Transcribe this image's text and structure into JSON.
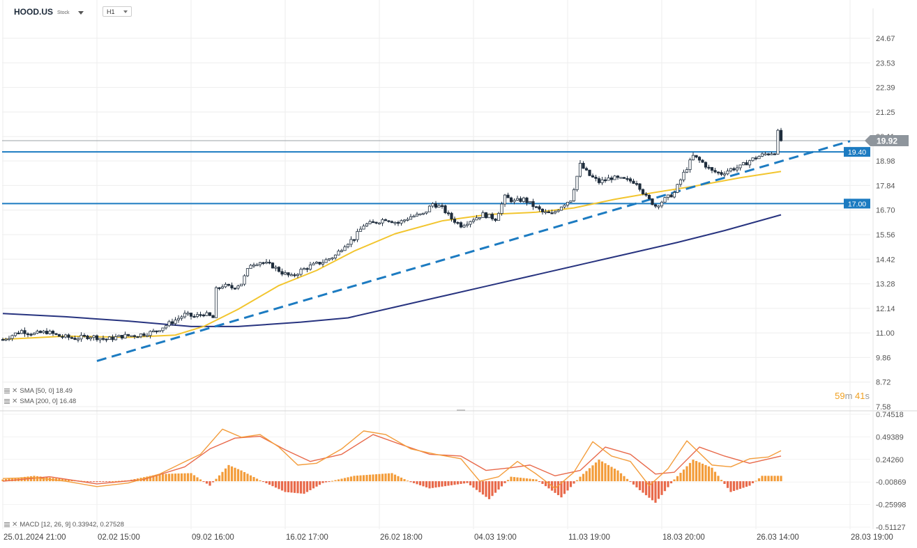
{
  "header": {
    "symbol": "HOOD.US",
    "type": "Stock",
    "timeframe": "H1"
  },
  "indicators": {
    "sma50": "SMA [50, 0] 18.49",
    "sma200": "SMA [200, 0] 16.48",
    "macd": "MACD [12, 26, 9] 0.33942,  0.27528"
  },
  "timer": {
    "min": "59",
    "min_unit": "m",
    "sec": "41",
    "sec_unit": "s"
  },
  "colors": {
    "candle": "#1f2d3d",
    "sma50": "#f2c52e",
    "sma200": "#27337f",
    "level": "#1c7bc1",
    "trend": "#1c7bc1",
    "macd_pos": "#f39c3a",
    "macd_neg": "#e8694a",
    "macd_line": "#f39c3a",
    "signal_line": "#e8694a",
    "price_badge": "#8e959c"
  },
  "chart_data": {
    "type": "candlestick",
    "price_axis": {
      "ticks": [
        24.67,
        23.53,
        22.39,
        21.25,
        20.11,
        18.98,
        17.84,
        16.7,
        15.56,
        14.42,
        13.28,
        12.14,
        11.0,
        9.86,
        8.72,
        7.58
      ]
    },
    "time_axis": {
      "labels": [
        "25.01.2024  21:00",
        "02.02  15:00",
        "09.02  16:00",
        "16.02  17:00",
        "26.02  18:00",
        "04.03  19:00",
        "11.03  19:00",
        "18.03  20:00",
        "26.03  14:00",
        "28.03  19:00"
      ]
    },
    "current_price": 19.92,
    "horizontal_levels": [
      {
        "label": "19.40",
        "value": 19.4
      },
      {
        "label": "17.00",
        "value": 17.0
      }
    ],
    "trendline": {
      "start": {
        "label": "02.02  15:00",
        "price": 9.7
      },
      "end": {
        "label": "28.03  19:00",
        "price": 19.9
      }
    },
    "price_path": [
      {
        "t": 0,
        "p": 10.7
      },
      {
        "t": 3,
        "p": 10.9
      },
      {
        "t": 6,
        "p": 11.1
      },
      {
        "t": 10,
        "p": 10.95
      },
      {
        "t": 14,
        "p": 11.05
      },
      {
        "t": 18,
        "p": 10.85
      },
      {
        "t": 23,
        "p": 10.75
      },
      {
        "t": 28,
        "p": 10.85
      },
      {
        "t": 33,
        "p": 10.7
      },
      {
        "t": 38,
        "p": 10.85
      },
      {
        "t": 43,
        "p": 10.9
      },
      {
        "t": 48,
        "p": 11.05
      },
      {
        "t": 52,
        "p": 11.35
      },
      {
        "t": 55,
        "p": 11.6
      },
      {
        "t": 58,
        "p": 11.85
      },
      {
        "t": 61,
        "p": 11.75
      },
      {
        "t": 64,
        "p": 11.9
      },
      {
        "t": 67,
        "p": 11.7
      },
      {
        "t": 68,
        "p": 13.0
      },
      {
        "t": 70,
        "p": 13.2
      },
      {
        "t": 73,
        "p": 13.1
      },
      {
        "t": 76,
        "p": 13.3
      },
      {
        "t": 79,
        "p": 14.2
      },
      {
        "t": 82,
        "p": 14.3
      },
      {
        "t": 86,
        "p": 14.1
      },
      {
        "t": 89,
        "p": 13.8
      },
      {
        "t": 92,
        "p": 13.6
      },
      {
        "t": 95,
        "p": 13.9
      },
      {
        "t": 98,
        "p": 14.1
      },
      {
        "t": 102,
        "p": 14.3
      },
      {
        "t": 106,
        "p": 14.6
      },
      {
        "t": 109,
        "p": 15.1
      },
      {
        "t": 112,
        "p": 15.4
      },
      {
        "t": 115,
        "p": 16.0
      },
      {
        "t": 118,
        "p": 16.1
      },
      {
        "t": 122,
        "p": 16.3
      },
      {
        "t": 126,
        "p": 16.1
      },
      {
        "t": 130,
        "p": 16.4
      },
      {
        "t": 134,
        "p": 16.5
      },
      {
        "t": 137,
        "p": 17.0
      },
      {
        "t": 140,
        "p": 16.8
      },
      {
        "t": 143,
        "p": 16.3
      },
      {
        "t": 146,
        "p": 16.0
      },
      {
        "t": 150,
        "p": 16.3
      },
      {
        "t": 153,
        "p": 16.5
      },
      {
        "t": 157,
        "p": 16.3
      },
      {
        "t": 160,
        "p": 17.3
      },
      {
        "t": 163,
        "p": 17.1
      },
      {
        "t": 166,
        "p": 17.2
      },
      {
        "t": 169,
        "p": 16.9
      },
      {
        "t": 172,
        "p": 16.6
      },
      {
        "t": 175,
        "p": 16.5
      },
      {
        "t": 178,
        "p": 16.9
      },
      {
        "t": 181,
        "p": 17.2
      },
      {
        "t": 184,
        "p": 18.8
      },
      {
        "t": 187,
        "p": 18.3
      },
      {
        "t": 190,
        "p": 18.0
      },
      {
        "t": 194,
        "p": 18.2
      },
      {
        "t": 198,
        "p": 18.1
      },
      {
        "t": 202,
        "p": 18.0
      },
      {
        "t": 205,
        "p": 17.3
      },
      {
        "t": 208,
        "p": 16.9
      },
      {
        "t": 211,
        "p": 17.2
      },
      {
        "t": 214,
        "p": 17.5
      },
      {
        "t": 217,
        "p": 18.4
      },
      {
        "t": 220,
        "p": 19.2
      },
      {
        "t": 223,
        "p": 18.9
      },
      {
        "t": 226,
        "p": 18.5
      },
      {
        "t": 229,
        "p": 18.4
      },
      {
        "t": 232,
        "p": 18.6
      },
      {
        "t": 235,
        "p": 18.7
      },
      {
        "t": 238,
        "p": 19.0
      },
      {
        "t": 241,
        "p": 19.2
      },
      {
        "t": 243,
        "p": 19.3
      },
      {
        "t": 246,
        "p": 19.4
      },
      {
        "t": 247,
        "p": 20.3
      },
      {
        "t": 248,
        "p": 19.92
      }
    ],
    "sma50": [
      {
        "t": 0,
        "p": 10.7
      },
      {
        "t": 20,
        "p": 10.85
      },
      {
        "t": 40,
        "p": 10.8
      },
      {
        "t": 55,
        "p": 10.9
      },
      {
        "t": 64,
        "p": 11.3
      },
      {
        "t": 75,
        "p": 12.1
      },
      {
        "t": 88,
        "p": 13.2
      },
      {
        "t": 100,
        "p": 13.9
      },
      {
        "t": 112,
        "p": 14.8
      },
      {
        "t": 125,
        "p": 15.6
      },
      {
        "t": 140,
        "p": 16.2
      },
      {
        "t": 155,
        "p": 16.5
      },
      {
        "t": 170,
        "p": 16.6
      },
      {
        "t": 182,
        "p": 16.8
      },
      {
        "t": 195,
        "p": 17.2
      },
      {
        "t": 207,
        "p": 17.5
      },
      {
        "t": 220,
        "p": 17.8
      },
      {
        "t": 235,
        "p": 18.2
      },
      {
        "t": 248,
        "p": 18.49
      }
    ],
    "sma200": [
      {
        "t": 0,
        "p": 11.9
      },
      {
        "t": 20,
        "p": 11.75
      },
      {
        "t": 40,
        "p": 11.55
      },
      {
        "t": 60,
        "p": 11.3
      },
      {
        "t": 75,
        "p": 11.3
      },
      {
        "t": 95,
        "p": 11.5
      },
      {
        "t": 110,
        "p": 11.7
      },
      {
        "t": 125,
        "p": 12.2
      },
      {
        "t": 140,
        "p": 12.7
      },
      {
        "t": 155,
        "p": 13.2
      },
      {
        "t": 170,
        "p": 13.7
      },
      {
        "t": 185,
        "p": 14.2
      },
      {
        "t": 200,
        "p": 14.7
      },
      {
        "t": 215,
        "p": 15.2
      },
      {
        "t": 230,
        "p": 15.75
      },
      {
        "t": 248,
        "p": 16.48
      }
    ],
    "macd": {
      "axis_ticks": [
        0.74518,
        0.49389,
        0.2426,
        -0.00869,
        -0.25998,
        -0.51127
      ],
      "histogram_path": [
        {
          "t": 0,
          "v": 0.02
        },
        {
          "t": 10,
          "v": 0.06
        },
        {
          "t": 20,
          "v": 0.02
        },
        {
          "t": 30,
          "v": -0.01
        },
        {
          "t": 40,
          "v": 0.01
        },
        {
          "t": 50,
          "v": 0.08
        },
        {
          "t": 60,
          "v": 0.09
        },
        {
          "t": 66,
          "v": -0.05
        },
        {
          "t": 72,
          "v": 0.18
        },
        {
          "t": 76,
          "v": 0.12
        },
        {
          "t": 82,
          "v": 0.01
        },
        {
          "t": 90,
          "v": -0.12
        },
        {
          "t": 96,
          "v": -0.14
        },
        {
          "t": 102,
          "v": -0.02
        },
        {
          "t": 112,
          "v": 0.06
        },
        {
          "t": 124,
          "v": 0.09
        },
        {
          "t": 130,
          "v": -0.01
        },
        {
          "t": 136,
          "v": -0.08
        },
        {
          "t": 148,
          "v": -0.02
        },
        {
          "t": 155,
          "v": -0.2
        },
        {
          "t": 162,
          "v": 0.05
        },
        {
          "t": 170,
          "v": 0.02
        },
        {
          "t": 178,
          "v": -0.18
        },
        {
          "t": 184,
          "v": 0.05
        },
        {
          "t": 190,
          "v": 0.24
        },
        {
          "t": 196,
          "v": 0.12
        },
        {
          "t": 203,
          "v": -0.1
        },
        {
          "t": 208,
          "v": -0.24
        },
        {
          "t": 214,
          "v": 0.02
        },
        {
          "t": 220,
          "v": 0.24
        },
        {
          "t": 226,
          "v": 0.15
        },
        {
          "t": 232,
          "v": -0.12
        },
        {
          "t": 238,
          "v": -0.05
        },
        {
          "t": 242,
          "v": 0.06
        },
        {
          "t": 248,
          "v": 0.06
        }
      ],
      "macd_line": [
        {
          "t": 0,
          "v": 0.03
        },
        {
          "t": 10,
          "v": 0.04
        },
        {
          "t": 20,
          "v": 0.0
        },
        {
          "t": 30,
          "v": -0.06
        },
        {
          "t": 40,
          "v": -0.02
        },
        {
          "t": 50,
          "v": 0.08
        },
        {
          "t": 57,
          "v": 0.2
        },
        {
          "t": 63,
          "v": 0.3
        },
        {
          "t": 70,
          "v": 0.58
        },
        {
          "t": 76,
          "v": 0.49
        },
        {
          "t": 82,
          "v": 0.52
        },
        {
          "t": 88,
          "v": 0.38
        },
        {
          "t": 94,
          "v": 0.18
        },
        {
          "t": 100,
          "v": 0.2
        },
        {
          "t": 108,
          "v": 0.36
        },
        {
          "t": 115,
          "v": 0.56
        },
        {
          "t": 122,
          "v": 0.52
        },
        {
          "t": 130,
          "v": 0.36
        },
        {
          "t": 138,
          "v": 0.3
        },
        {
          "t": 146,
          "v": 0.25
        },
        {
          "t": 152,
          "v": 0.0
        },
        {
          "t": 158,
          "v": 0.05
        },
        {
          "t": 164,
          "v": 0.22
        },
        {
          "t": 170,
          "v": 0.08
        },
        {
          "t": 176,
          "v": -0.08
        },
        {
          "t": 182,
          "v": 0.1
        },
        {
          "t": 188,
          "v": 0.44
        },
        {
          "t": 194,
          "v": 0.28
        },
        {
          "t": 200,
          "v": 0.22
        },
        {
          "t": 206,
          "v": -0.05
        },
        {
          "t": 212,
          "v": 0.14
        },
        {
          "t": 218,
          "v": 0.45
        },
        {
          "t": 226,
          "v": 0.18
        },
        {
          "t": 232,
          "v": 0.16
        },
        {
          "t": 238,
          "v": 0.25
        },
        {
          "t": 244,
          "v": 0.27
        },
        {
          "t": 248,
          "v": 0.34
        }
      ],
      "signal_line": [
        {
          "t": 0,
          "v": 0.0
        },
        {
          "t": 15,
          "v": 0.05
        },
        {
          "t": 30,
          "v": -0.03
        },
        {
          "t": 45,
          "v": 0.02
        },
        {
          "t": 58,
          "v": 0.16
        },
        {
          "t": 66,
          "v": 0.36
        },
        {
          "t": 74,
          "v": 0.48
        },
        {
          "t": 82,
          "v": 0.5
        },
        {
          "t": 90,
          "v": 0.35
        },
        {
          "t": 98,
          "v": 0.22
        },
        {
          "t": 108,
          "v": 0.3
        },
        {
          "t": 118,
          "v": 0.52
        },
        {
          "t": 126,
          "v": 0.42
        },
        {
          "t": 136,
          "v": 0.3
        },
        {
          "t": 146,
          "v": 0.28
        },
        {
          "t": 154,
          "v": 0.12
        },
        {
          "t": 162,
          "v": 0.15
        },
        {
          "t": 168,
          "v": 0.18
        },
        {
          "t": 176,
          "v": 0.06
        },
        {
          "t": 184,
          "v": 0.12
        },
        {
          "t": 192,
          "v": 0.38
        },
        {
          "t": 200,
          "v": 0.3
        },
        {
          "t": 208,
          "v": 0.08
        },
        {
          "t": 214,
          "v": 0.1
        },
        {
          "t": 222,
          "v": 0.38
        },
        {
          "t": 230,
          "v": 0.28
        },
        {
          "t": 238,
          "v": 0.2
        },
        {
          "t": 248,
          "v": 0.28
        }
      ]
    }
  }
}
